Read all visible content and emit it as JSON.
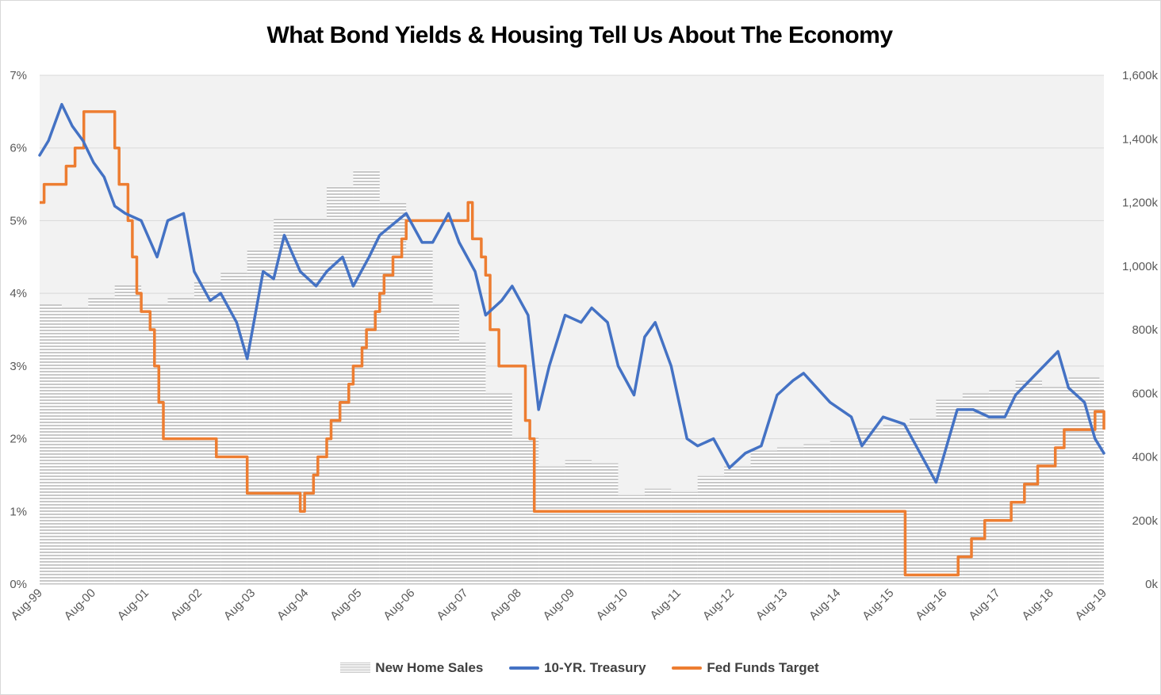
{
  "chart_data": {
    "type": "line",
    "title": "What Bond Yields & Housing Tell Us About The Economy",
    "x_tick_labels": [
      "Aug-99",
      "Aug-00",
      "Aug-01",
      "Aug-02",
      "Aug-03",
      "Aug-04",
      "Aug-05",
      "Aug-06",
      "Aug-07",
      "Aug-08",
      "Aug-09",
      "Aug-10",
      "Aug-11",
      "Aug-12",
      "Aug-13",
      "Aug-14",
      "Aug-15",
      "Aug-16",
      "Aug-17",
      "Aug-18",
      "Aug-19"
    ],
    "y_left_ticks": [
      "0%",
      "1%",
      "2%",
      "3%",
      "4%",
      "5%",
      "6%",
      "7%"
    ],
    "y_left_range": [
      0,
      7
    ],
    "y_right_ticks": [
      "0k",
      "200k",
      "400k",
      "600k",
      "800k",
      "1,000k",
      "1,200k",
      "1,400k",
      "1,600k"
    ],
    "y_right_range": [
      0,
      1600
    ],
    "x_range": [
      1999.583,
      2019.667
    ],
    "grid": "horizontal",
    "legend_position": "bottom",
    "colors": {
      "new_home_sales": "#c0c0c0",
      "treasury": "#4472c4",
      "fed_funds": "#ed7d31",
      "plot_background": "#f2f2f2"
    },
    "series": [
      {
        "name": "New Home Sales",
        "kind": "bar",
        "axis": "right",
        "x": [
          1999.583,
          2000.0,
          2000.5,
          2001.0,
          2001.5,
          2002.0,
          2002.5,
          2003.0,
          2003.5,
          2004.0,
          2004.5,
          2005.0,
          2005.5,
          2006.0,
          2006.5,
          2007.0,
          2007.5,
          2008.0,
          2008.5,
          2009.0,
          2009.5,
          2010.0,
          2010.5,
          2011.0,
          2011.5,
          2012.0,
          2012.5,
          2013.0,
          2013.5,
          2014.0,
          2014.5,
          2015.0,
          2015.5,
          2016.0,
          2016.5,
          2017.0,
          2017.5,
          2018.0,
          2018.5,
          2019.0,
          2019.583
        ],
        "values": [
          880,
          870,
          900,
          940,
          880,
          900,
          950,
          980,
          1050,
          1150,
          1150,
          1250,
          1300,
          1200,
          1050,
          880,
          760,
          600,
          460,
          370,
          390,
          380,
          280,
          300,
          290,
          340,
          370,
          420,
          430,
          440,
          450,
          490,
          500,
          520,
          580,
          600,
          610,
          640,
          620,
          650,
          640
        ]
      },
      {
        "name": "10-YR. Treasury",
        "kind": "line",
        "axis": "left",
        "x": [
          1999.583,
          1999.75,
          2000.0,
          2000.2,
          2000.4,
          2000.6,
          2000.8,
          2001.0,
          2001.2,
          2001.5,
          2001.8,
          2002.0,
          2002.3,
          2002.5,
          2002.8,
          2003.0,
          2003.3,
          2003.5,
          2003.8,
          2004.0,
          2004.2,
          2004.5,
          2004.8,
          2005.0,
          2005.3,
          2005.5,
          2005.8,
          2006.0,
          2006.5,
          2006.8,
          2007.0,
          2007.3,
          2007.5,
          2007.8,
          2008.0,
          2008.3,
          2008.5,
          2008.8,
          2009.0,
          2009.2,
          2009.5,
          2009.8,
          2010.0,
          2010.3,
          2010.5,
          2010.8,
          2011.0,
          2011.2,
          2011.5,
          2011.8,
          2012.0,
          2012.3,
          2012.6,
          2012.9,
          2013.2,
          2013.5,
          2013.8,
          2014.0,
          2014.5,
          2014.9,
          2015.1,
          2015.5,
          2015.9,
          2016.2,
          2016.5,
          2016.9,
          2017.2,
          2017.5,
          2017.8,
          2018.0,
          2018.4,
          2018.8,
          2019.0,
          2019.3,
          2019.5,
          2019.667
        ],
        "values": [
          5.9,
          6.1,
          6.6,
          6.3,
          6.1,
          5.8,
          5.6,
          5.2,
          5.1,
          5.0,
          4.5,
          5.0,
          5.1,
          4.3,
          3.9,
          4.0,
          3.6,
          3.1,
          4.3,
          4.2,
          4.8,
          4.3,
          4.1,
          4.3,
          4.5,
          4.1,
          4.5,
          4.8,
          5.1,
          4.7,
          4.7,
          5.1,
          4.7,
          4.3,
          3.7,
          3.9,
          4.1,
          3.7,
          2.4,
          3.0,
          3.7,
          3.6,
          3.8,
          3.6,
          3.0,
          2.6,
          3.4,
          3.6,
          3.0,
          2.0,
          1.9,
          2.0,
          1.6,
          1.8,
          1.9,
          2.6,
          2.8,
          2.9,
          2.5,
          2.3,
          1.9,
          2.3,
          2.2,
          1.8,
          1.4,
          2.4,
          2.4,
          2.3,
          2.3,
          2.6,
          2.9,
          3.2,
          2.7,
          2.5,
          2.0,
          1.8
        ]
      },
      {
        "name": "Fed Funds Target",
        "kind": "step",
        "axis": "left",
        "x": [
          1999.583,
          1999.667,
          1999.917,
          2000.083,
          2000.25,
          2000.417,
          2001.0,
          2001.083,
          2001.25,
          2001.333,
          2001.417,
          2001.5,
          2001.667,
          2001.75,
          2001.833,
          2001.917,
          2002.917,
          2003.5,
          2004.5,
          2004.583,
          2004.75,
          2004.833,
          2005.0,
          2005.083,
          2005.25,
          2005.417,
          2005.5,
          2005.667,
          2005.75,
          2005.917,
          2006.0,
          2006.083,
          2006.25,
          2006.417,
          2006.5,
          2007.667,
          2007.75,
          2007.917,
          2008.0,
          2008.083,
          2008.25,
          2008.75,
          2008.833,
          2008.917,
          2015.917,
          2016.917,
          2017.167,
          2017.417,
          2017.917,
          2018.167,
          2018.417,
          2018.75,
          2018.917,
          2019.5,
          2019.667
        ],
        "values": [
          5.25,
          5.5,
          5.5,
          5.75,
          6.0,
          6.5,
          6.0,
          5.5,
          5.0,
          4.5,
          4.0,
          3.75,
          3.5,
          3.0,
          2.5,
          2.0,
          1.75,
          1.25,
          1.0,
          1.25,
          1.5,
          1.75,
          2.0,
          2.25,
          2.5,
          2.75,
          3.0,
          3.25,
          3.5,
          3.75,
          4.0,
          4.25,
          4.5,
          4.75,
          5.0,
          5.25,
          4.75,
          4.5,
          4.25,
          3.5,
          3.0,
          2.25,
          2.0,
          1.0,
          0.125,
          0.375,
          0.625,
          0.875,
          1.125,
          1.375,
          1.625,
          1.875,
          2.125,
          2.375,
          2.125
        ]
      }
    ]
  }
}
